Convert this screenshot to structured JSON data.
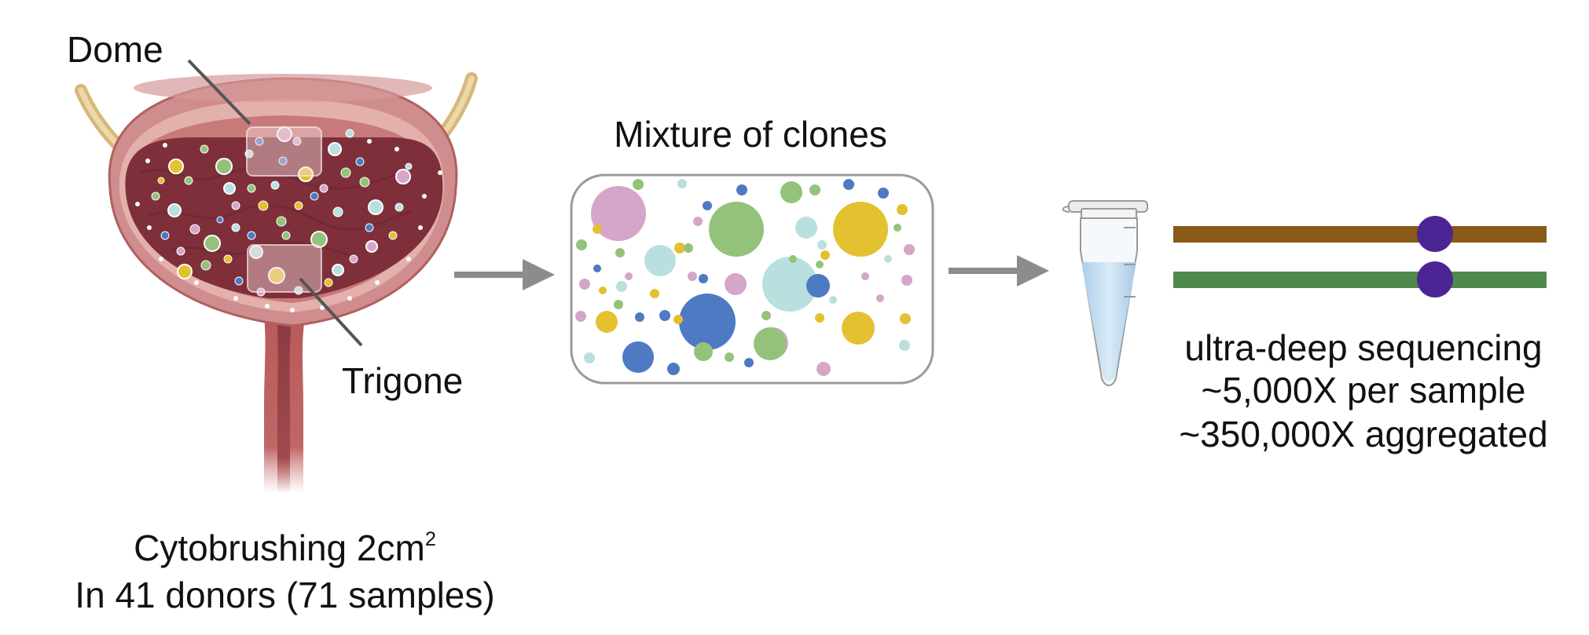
{
  "bladder": {
    "dome_label": "Dome",
    "trigone_label": "Trigone",
    "caption_line1": "Cytobrushing 2cm",
    "caption_superscript": "2",
    "caption_line2": "In 41 donors (71 samples)"
  },
  "clones": {
    "title": "Mixture of clones",
    "palette": [
      "#d5a6c9",
      "#94c27a",
      "#b9e0df",
      "#e3c130",
      "#4e79c3"
    ]
  },
  "sequencing": {
    "line1": "ultra-deep sequencing",
    "line2": "~5,000X per sample",
    "line3": "~350,000X aggregated",
    "read_colors": [
      "#8b5a16",
      "#4f8a4c"
    ],
    "variant_color": "#4b2594"
  }
}
